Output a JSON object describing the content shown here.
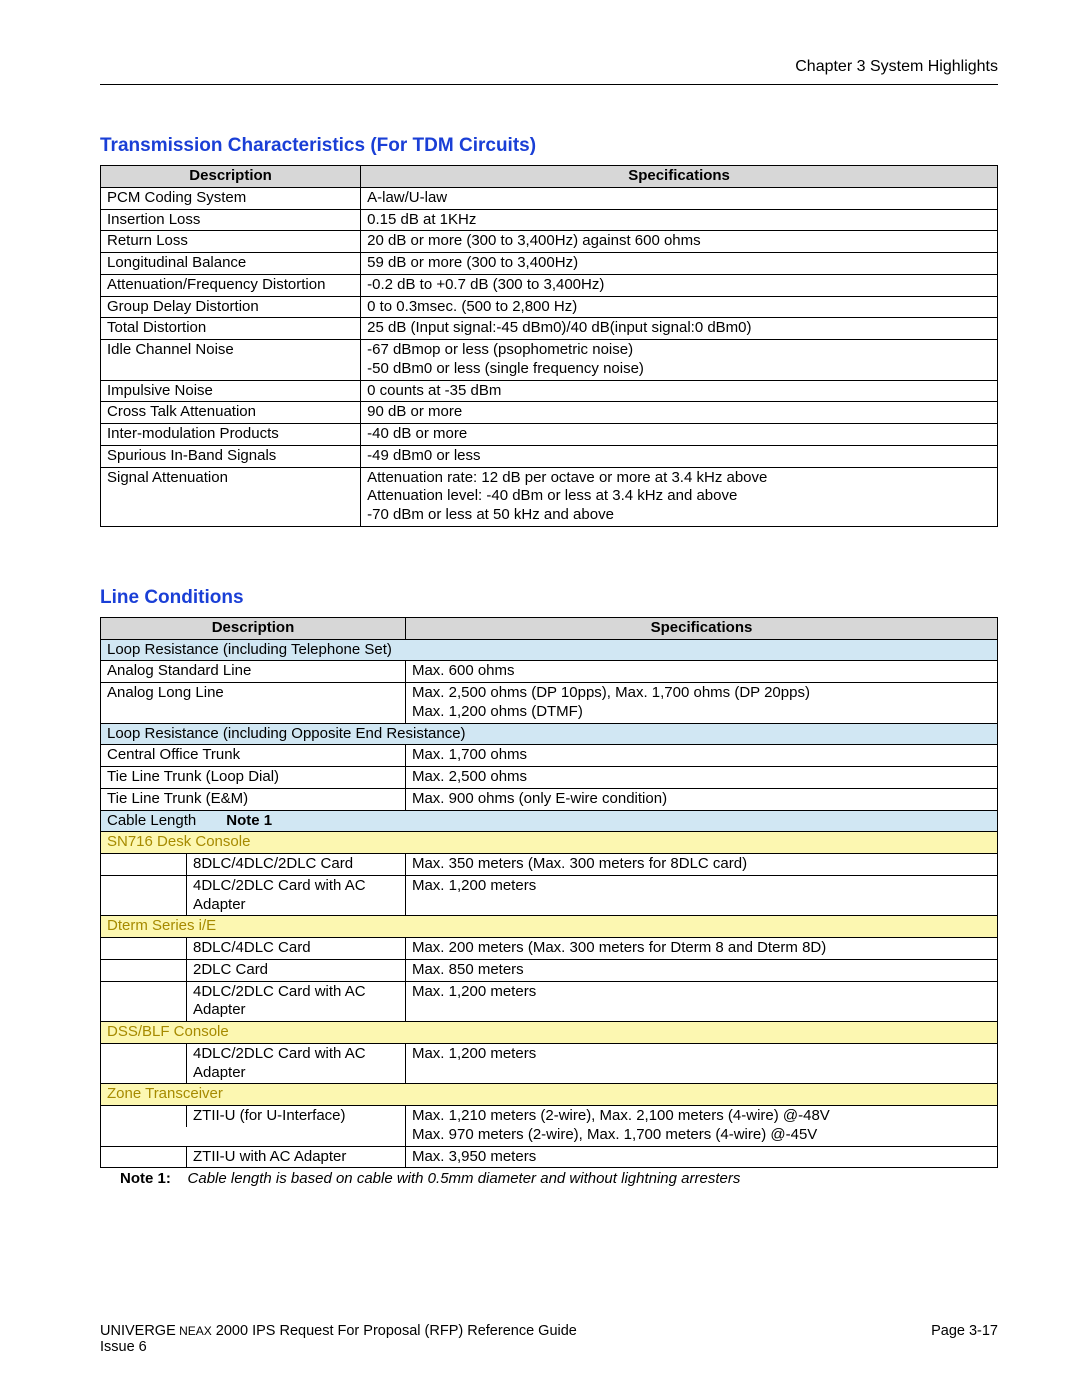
{
  "header": {
    "chapter": "Chapter 3   System Highlights"
  },
  "section1": {
    "title": "Transmission Characteristics (For TDM Circuits)",
    "columns": [
      "Description",
      "Specifications"
    ],
    "rows": [
      [
        "PCM Coding System",
        "A-law/U-law"
      ],
      [
        "Insertion Loss",
        "0.15 dB at 1KHz"
      ],
      [
        "Return Loss",
        "20 dB or more (300 to 3,400Hz) against 600 ohms"
      ],
      [
        "Longitudinal Balance",
        "59 dB or more (300 to 3,400Hz)"
      ],
      [
        "Attenuation/Frequency Distortion",
        "-0.2 dB to +0.7 dB (300 to 3,400Hz)"
      ],
      [
        "Group Delay Distortion",
        "0 to 0.3msec. (500 to 2,800 Hz)"
      ],
      [
        "Total Distortion",
        "25 dB (Input signal:-45 dBm0)/40 dB(input signal:0 dBm0)"
      ],
      [
        "Idle Channel Noise",
        "-67 dBmop or less (psophometric noise)\n-50 dBm0 or less (single frequency noise)"
      ],
      [
        "Impulsive Noise",
        "0 counts at -35 dBm"
      ],
      [
        "Cross Talk Attenuation",
        "90 dB or more"
      ],
      [
        "Inter-modulation Products",
        "-40 dB or more"
      ],
      [
        "Spurious In-Band Signals",
        "-49 dBm0 or less"
      ],
      [
        "Signal Attenuation",
        "Attenuation rate: 12 dB per octave or more at 3.4 kHz above\nAttenuation level: -40 dBm or less at 3.4 kHz and above\n-70 dBm or less at 50 kHz and above"
      ]
    ]
  },
  "section2": {
    "title": "Line Conditions",
    "columns": [
      "Description",
      "Specifications"
    ],
    "group1": {
      "header": "Loop Resistance (including Telephone Set)",
      "rows": [
        [
          "Analog Standard Line",
          "Max. 600 ohms"
        ],
        [
          "Analog Long Line",
          "Max. 2,500 ohms (DP 10pps), Max. 1,700 ohms (DP 20pps)\nMax. 1,200 ohms (DTMF)"
        ]
      ]
    },
    "group2": {
      "header": "Loop Resistance (including Opposite End Resistance)",
      "rows": [
        [
          "Central Office Trunk",
          "Max. 1,700 ohms"
        ],
        [
          "Tie Line Trunk (Loop Dial)",
          "Max. 2,500 ohms"
        ],
        [
          "Tie Line Trunk (E&M)",
          "Max. 900 ohms (only E-wire condition)"
        ]
      ]
    },
    "group3": {
      "header": "Cable Length",
      "note_label": "Note 1",
      "sub1": {
        "title": "SN716 Desk Console",
        "rows": [
          [
            "8DLC/4DLC/2DLC Card",
            "Max. 350 meters (Max. 300 meters for 8DLC card)"
          ],
          [
            "4DLC/2DLC Card with AC Adapter",
            "Max. 1,200 meters"
          ]
        ]
      },
      "sub2": {
        "title": "Dterm Series i/E",
        "rows": [
          [
            "8DLC/4DLC Card",
            "Max. 200 meters (Max. 300 meters for Dterm 8 and Dterm 8D)"
          ],
          [
            "2DLC Card",
            "Max. 850 meters"
          ],
          [
            "4DLC/2DLC Card with AC Adapter",
            "Max. 1,200 meters"
          ]
        ]
      },
      "sub3": {
        "title": "DSS/BLF Console",
        "rows": [
          [
            "4DLC/2DLC Card with AC Adapter",
            "Max. 1,200 meters"
          ]
        ]
      },
      "sub4": {
        "title": "Zone Transceiver",
        "rows": [
          [
            "ZTII-U (for U-Interface)",
            "Max. 1,210 meters (2-wire), Max. 2,100 meters (4-wire) @-48V\nMax. 970 meters (2-wire), Max. 1,700 meters (4-wire) @-45V"
          ],
          [
            "ZTII-U with AC Adapter",
            "Max. 3,950 meters"
          ]
        ]
      }
    },
    "note1": {
      "label": "Note 1:",
      "text": "Cable length is based on cable with 0.5mm diameter and without lightning arresters"
    }
  },
  "footer": {
    "line1a": "UNIVERGE",
    "line1b": " NEAX",
    "line1c": " 2000 IPS Request For Proposal (RFP) Reference Guide",
    "line2": "Issue 6",
    "page": "Page 3-17"
  }
}
